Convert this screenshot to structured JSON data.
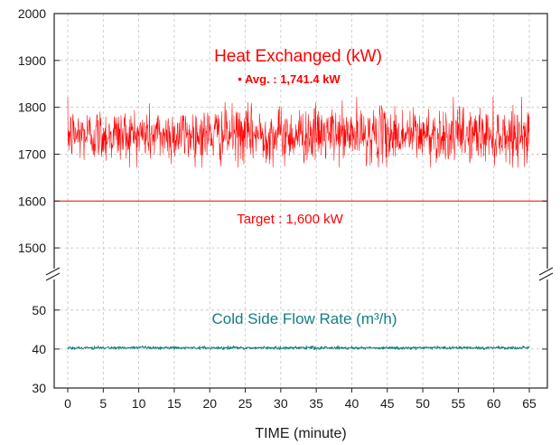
{
  "chart_data": {
    "type": "line",
    "xlabel": "TIME (minute)",
    "x_range": [
      0,
      65
    ],
    "x_ticks": [
      "0",
      "5",
      "10",
      "15",
      "20",
      "25",
      "30",
      "35",
      "40",
      "45",
      "50",
      "55",
      "60",
      "65"
    ],
    "grid": true,
    "upper_panel": {
      "ylim": [
        1450,
        2000
      ],
      "y_ticks": [
        "1500",
        "1600",
        "1700",
        "1800",
        "1900",
        "2000"
      ]
    },
    "lower_panel": {
      "ylim": [
        30,
        59
      ],
      "y_ticks": [
        "30",
        "40",
        "50"
      ]
    },
    "series": [
      {
        "name": "Heat Exchanged (kW)",
        "panel": "upper",
        "color": "#ff0000",
        "average_label": "• Avg. : 1,741.4 kW",
        "mean": 1741.4,
        "min": 1672,
        "max": 1822,
        "sample_interval_minutes": 0.05
      },
      {
        "name": "Cold Side Flow Rate (m³/h)",
        "panel": "lower",
        "color": "#117f7f",
        "mean": 40.3,
        "min": 39.8,
        "max": 40.8,
        "sample_interval_minutes": 0.05
      }
    ],
    "reference_lines": [
      {
        "label": "Target : 1,600 kW",
        "value": 1600,
        "panel": "upper",
        "color": "#ff0000"
      }
    ]
  }
}
